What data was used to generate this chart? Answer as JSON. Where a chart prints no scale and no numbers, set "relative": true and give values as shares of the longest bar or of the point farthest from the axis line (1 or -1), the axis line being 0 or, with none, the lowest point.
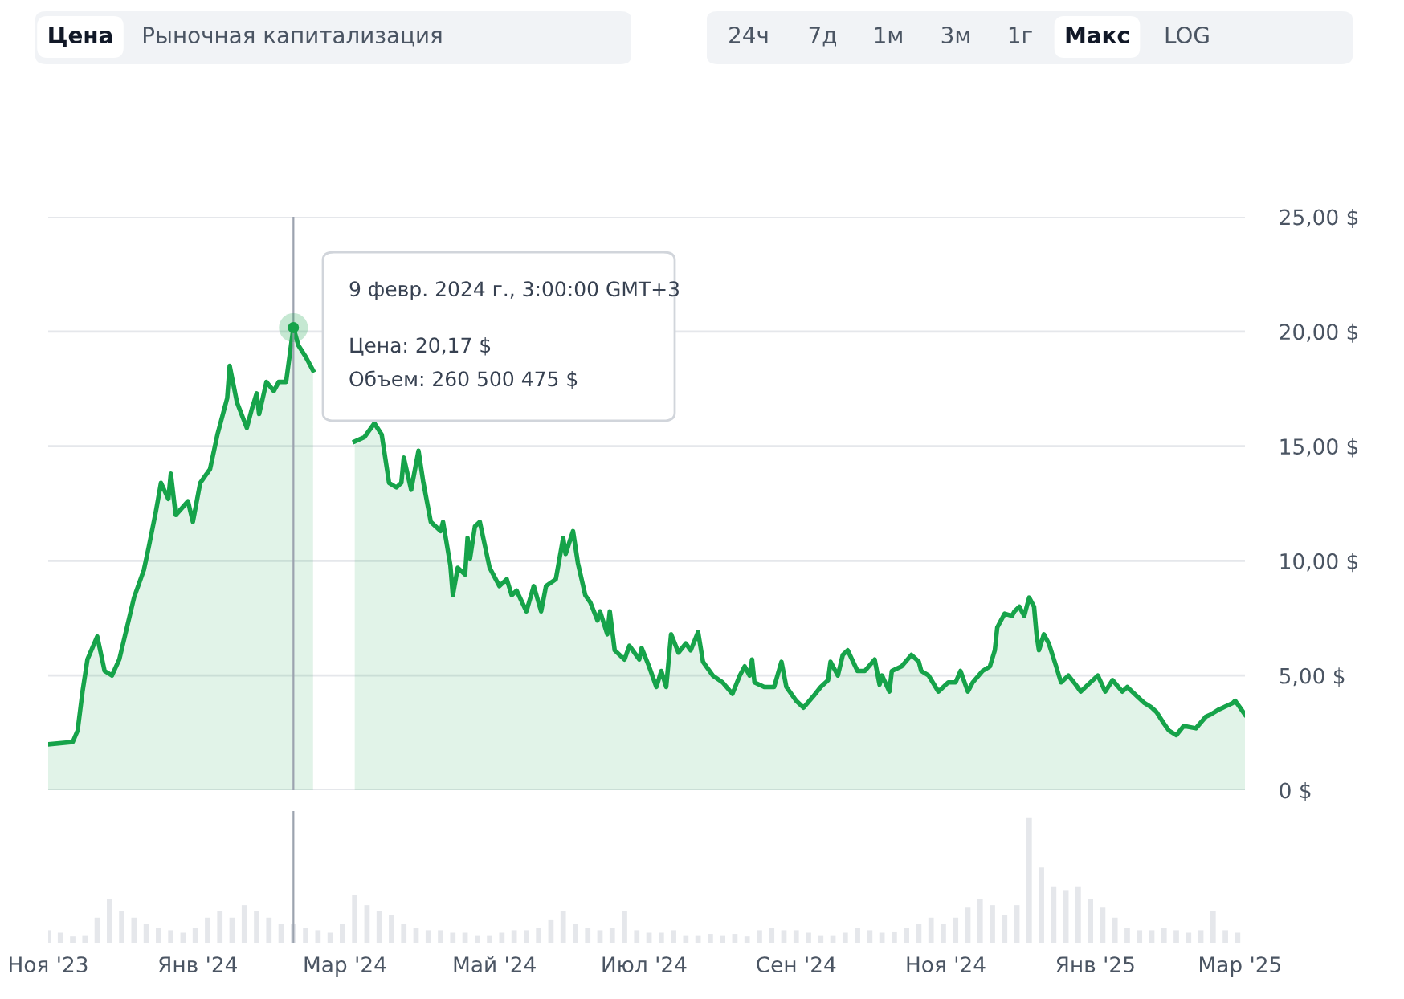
{
  "chart_data": [
    {
      "type": "area",
      "color": "#16a34a",
      "grid": "y",
      "tick_labels": "y",
      "legend": false,
      "xlim": [
        "2023-11-01",
        "2025-03-03"
      ],
      "ylim": [
        0,
        25
      ],
      "yticks": [
        {
          "value": 0,
          "label": "0 $"
        },
        {
          "value": 5,
          "label": "5,00 $"
        },
        {
          "value": 10,
          "label": "10,00 $"
        },
        {
          "value": 15,
          "label": "15,00 $"
        },
        {
          "value": 20,
          "label": "20,00 $"
        },
        {
          "value": 25,
          "label": "25,00 $"
        }
      ],
      "ref_lines": [
        {
          "axis": "x",
          "value": "2024-02-09",
          "label": null,
          "color": "#9ca3af"
        }
      ],
      "annotations": [
        "9 февр. 2024 г., 3:00:00 GMT+3",
        {
          "text": "Цена: 20,17 $",
          "x": "2024-02-09",
          "y": 20.17
        },
        "Объем: 260 500 475 $",
        "Цена",
        "Рыночная капитализация",
        "24ч",
        "7д",
        "1м",
        "3м",
        "1г",
        "Макс",
        "LOG"
      ],
      "x": [
        "2023-11-01",
        "2023-11-11",
        "2023-11-13",
        "2023-11-15",
        "2023-11-17",
        "2023-11-21",
        "2023-11-24",
        "2023-11-27",
        "2023-11-30",
        "2023-12-04",
        "2023-12-06",
        "2023-12-10",
        "2023-12-12",
        "2023-12-15",
        "2023-12-17",
        "2023-12-20",
        "2023-12-21",
        "2023-12-23",
        "2023-12-28",
        "2023-12-30",
        "2024-01-02",
        "2024-01-06",
        "2024-01-09",
        "2024-01-13",
        "2024-01-14",
        "2024-01-17",
        "2024-01-21",
        "2024-01-23",
        "2024-01-25",
        "2024-01-26",
        "2024-01-29",
        "2024-02-01",
        "2024-02-03",
        "2024-02-06",
        "2024-02-09",
        "2024-02-11",
        "2024-02-14",
        "2024-02-17",
        "2024-02-20",
        "2024-02-24",
        "2024-03-05",
        "2024-03-09",
        "2024-03-13",
        "2024-03-16",
        "2024-03-19",
        "2024-03-22",
        "2024-03-24",
        "2024-03-25",
        "2024-03-28",
        "2024-03-31",
        "2024-04-02",
        "2024-04-05",
        "2024-04-09",
        "2024-04-10",
        "2024-04-13",
        "2024-04-14",
        "2024-04-16",
        "2024-04-19",
        "2024-04-20",
        "2024-04-21",
        "2024-04-23",
        "2024-04-25",
        "2024-04-29",
        "2024-05-03",
        "2024-05-06",
        "2024-05-08",
        "2024-05-10",
        "2024-05-14",
        "2024-05-17",
        "2024-05-20",
        "2024-05-22",
        "2024-05-26",
        "2024-05-29",
        "2024-05-30",
        "2024-06-02",
        "2024-06-04",
        "2024-06-07",
        "2024-06-09",
        "2024-06-12",
        "2024-06-13",
        "2024-06-16",
        "2024-06-17",
        "2024-06-19",
        "2024-06-23",
        "2024-06-25",
        "2024-06-29",
        "2024-06-30",
        "2024-07-03",
        "2024-07-06",
        "2024-07-08",
        "2024-07-10",
        "2024-07-12",
        "2024-07-15",
        "2024-07-18",
        "2024-07-20",
        "2024-07-23",
        "2024-07-25",
        "2024-07-29",
        "2024-08-02",
        "2024-08-06",
        "2024-08-09",
        "2024-08-11",
        "2024-08-13",
        "2024-08-14",
        "2024-08-15",
        "2024-08-19",
        "2024-08-23",
        "2024-08-26",
        "2024-08-28",
        "2024-09-01",
        "2024-09-04",
        "2024-09-08",
        "2024-09-11",
        "2024-09-14",
        "2024-09-15",
        "2024-09-18",
        "2024-09-20",
        "2024-09-22",
        "2024-09-26",
        "2024-09-29",
        "2024-10-03",
        "2024-10-05",
        "2024-10-06",
        "2024-10-09",
        "2024-10-10",
        "2024-10-14",
        "2024-10-18",
        "2024-10-21",
        "2024-10-22",
        "2024-10-25",
        "2024-10-29",
        "2024-11-02",
        "2024-11-05",
        "2024-11-07",
        "2024-11-10",
        "2024-11-12",
        "2024-11-16",
        "2024-11-19",
        "2024-11-21",
        "2024-11-22",
        "2024-11-25",
        "2024-11-28",
        "2024-11-29",
        "2024-12-01",
        "2024-12-03",
        "2024-12-05",
        "2024-12-07",
        "2024-12-08",
        "2024-12-09",
        "2024-12-11",
        "2024-12-13",
        "2024-12-16",
        "2024-12-18",
        "2024-12-21",
        "2024-12-24",
        "2024-12-26",
        "2024-12-30",
        "2025-01-02",
        "2025-01-05",
        "2025-01-08",
        "2025-01-12",
        "2025-01-14",
        "2025-01-18",
        "2025-01-21",
        "2025-01-24",
        "2025-01-26",
        "2025-01-29",
        "2025-01-31",
        "2025-02-03",
        "2025-02-06",
        "2025-02-11",
        "2025-02-15",
        "2025-02-17",
        "2025-02-20",
        "2025-02-22",
        "2025-02-26",
        "2025-02-27",
        "2025-03-01",
        "2025-03-03"
      ],
      "values": [
        2.0,
        2.1,
        2.6,
        4.3,
        5.7,
        6.7,
        5.2,
        5.0,
        5.7,
        7.5,
        8.4,
        9.6,
        10.6,
        12.2,
        13.4,
        12.7,
        13.8,
        12.0,
        12.6,
        11.7,
        13.4,
        14.0,
        15.5,
        17.1,
        18.5,
        16.9,
        15.8,
        16.6,
        17.3,
        16.4,
        17.8,
        17.4,
        17.8,
        17.8,
        20.17,
        19.4,
        18.9,
        18.3,
        null,
        null,
        15.2,
        15.4,
        16.0,
        15.5,
        13.4,
        13.2,
        13.4,
        14.5,
        13.1,
        14.8,
        13.4,
        11.7,
        11.3,
        11.7,
        9.8,
        8.5,
        9.7,
        9.4,
        11.0,
        10.1,
        11.5,
        11.7,
        9.7,
        8.9,
        9.2,
        8.5,
        8.7,
        7.8,
        8.9,
        7.8,
        8.9,
        9.2,
        11.0,
        10.3,
        11.3,
        9.9,
        8.5,
        8.2,
        7.4,
        7.8,
        6.8,
        7.8,
        6.1,
        5.7,
        6.3,
        5.7,
        6.2,
        5.4,
        4.5,
        5.2,
        4.5,
        6.8,
        6.0,
        6.4,
        6.1,
        6.9,
        5.6,
        5.0,
        4.7,
        4.2,
        5.0,
        5.4,
        5.0,
        5.7,
        4.7,
        4.5,
        4.5,
        5.6,
        4.5,
        3.9,
        3.6,
        4.1,
        4.5,
        4.8,
        5.6,
        5.0,
        5.9,
        6.1,
        5.2,
        5.2,
        5.7,
        4.6,
        5.0,
        4.3,
        5.2,
        5.4,
        5.9,
        5.6,
        5.2,
        5.0,
        4.3,
        4.7,
        4.7,
        5.2,
        4.3,
        4.7,
        5.2,
        5.4,
        6.1,
        7.1,
        7.7,
        7.6,
        7.8,
        8.0,
        7.6,
        8.4,
        8.0,
        6.8,
        6.1,
        6.8,
        6.4,
        5.4,
        4.7,
        5.0,
        4.6,
        4.3,
        4.7,
        5.0,
        4.3,
        4.8,
        4.3,
        4.5,
        4.1,
        3.8,
        3.6,
        3.4,
        2.9,
        2.6,
        2.4,
        2.8,
        2.7,
        3.2,
        3.3,
        3.5,
        3.6,
        3.8,
        3.9,
        3.6,
        3.3
      ]
    },
    {
      "type": "bar",
      "relative": true,
      "color": "#e5e7eb",
      "tick_labels": "x",
      "xlim": [
        "2023-11-01",
        "2025-03-03"
      ],
      "xticks": [
        {
          "value": "2023-11-01",
          "label": "Ноя '23"
        },
        {
          "value": "2024-01-01",
          "label": "Янв '24"
        },
        {
          "value": "2024-03-01",
          "label": "Мар '24"
        },
        {
          "value": "2024-05-01",
          "label": "Май '24"
        },
        {
          "value": "2024-07-01",
          "label": "Июл '24"
        },
        {
          "value": "2024-09-01",
          "label": "Сен '24"
        },
        {
          "value": "2024-11-01",
          "label": "Ноя '24"
        },
        {
          "value": "2025-01-01",
          "label": "Янв '25"
        },
        {
          "value": "2025-03-01",
          "label": "Мар '25"
        }
      ],
      "ref_lines": [
        {
          "axis": "x",
          "value": "2024-02-09",
          "label": null,
          "color": "#9ca3af"
        }
      ],
      "x": [
        "2023-11-01",
        "2023-11-06",
        "2023-11-11",
        "2023-11-16",
        "2023-11-21",
        "2023-11-26",
        "2023-12-01",
        "2023-12-06",
        "2023-12-11",
        "2023-12-16",
        "2023-12-21",
        "2023-12-26",
        "2023-12-31",
        "2024-01-05",
        "2024-01-10",
        "2024-01-15",
        "2024-01-20",
        "2024-01-25",
        "2024-01-30",
        "2024-02-04",
        "2024-02-09",
        "2024-02-14",
        "2024-02-19",
        "2024-02-24",
        "2024-02-29",
        "2024-03-05",
        "2024-03-10",
        "2024-03-15",
        "2024-03-20",
        "2024-03-25",
        "2024-03-30",
        "2024-04-04",
        "2024-04-09",
        "2024-04-14",
        "2024-04-19",
        "2024-04-24",
        "2024-04-29",
        "2024-05-04",
        "2024-05-09",
        "2024-05-14",
        "2024-05-19",
        "2024-05-24",
        "2024-05-29",
        "2024-06-03",
        "2024-06-08",
        "2024-06-13",
        "2024-06-18",
        "2024-06-23",
        "2024-06-28",
        "2024-07-03",
        "2024-07-08",
        "2024-07-13",
        "2024-07-18",
        "2024-07-23",
        "2024-07-28",
        "2024-08-02",
        "2024-08-07",
        "2024-08-12",
        "2024-08-17",
        "2024-08-22",
        "2024-08-27",
        "2024-09-01",
        "2024-09-06",
        "2024-09-11",
        "2024-09-16",
        "2024-09-21",
        "2024-09-26",
        "2024-10-01",
        "2024-10-06",
        "2024-10-11",
        "2024-10-16",
        "2024-10-21",
        "2024-10-26",
        "2024-10-31",
        "2024-11-05",
        "2024-11-10",
        "2024-11-15",
        "2024-11-20",
        "2024-11-25",
        "2024-11-30",
        "2024-12-05",
        "2024-12-10",
        "2024-12-15",
        "2024-12-20",
        "2024-12-25",
        "2024-12-30",
        "2025-01-04",
        "2025-01-09",
        "2025-01-14",
        "2025-01-19",
        "2025-01-24",
        "2025-01-29",
        "2025-02-03",
        "2025-02-08",
        "2025-02-13",
        "2025-02-18",
        "2025-02-23",
        "2025-02-28"
      ],
      "values": [
        0.1,
        0.08,
        0.05,
        0.06,
        0.2,
        0.35,
        0.25,
        0.2,
        0.15,
        0.12,
        0.1,
        0.08,
        0.12,
        0.2,
        0.25,
        0.2,
        0.3,
        0.25,
        0.2,
        0.15,
        0.15,
        0.12,
        0.1,
        0.08,
        0.15,
        0.38,
        0.3,
        0.25,
        0.22,
        0.15,
        0.12,
        0.1,
        0.1,
        0.08,
        0.08,
        0.06,
        0.06,
        0.08,
        0.1,
        0.1,
        0.12,
        0.18,
        0.25,
        0.15,
        0.12,
        0.1,
        0.12,
        0.25,
        0.1,
        0.08,
        0.08,
        0.1,
        0.06,
        0.06,
        0.07,
        0.06,
        0.07,
        0.05,
        0.1,
        0.12,
        0.1,
        0.1,
        0.08,
        0.06,
        0.06,
        0.08,
        0.12,
        0.1,
        0.08,
        0.09,
        0.12,
        0.15,
        0.2,
        0.15,
        0.2,
        0.28,
        0.35,
        0.3,
        0.22,
        0.3,
        1.0,
        0.6,
        0.45,
        0.42,
        0.45,
        0.35,
        0.28,
        0.2,
        0.12,
        0.1,
        0.1,
        0.12,
        0.1,
        0.08,
        0.1,
        0.25,
        0.1,
        0.08
      ]
    }
  ]
}
